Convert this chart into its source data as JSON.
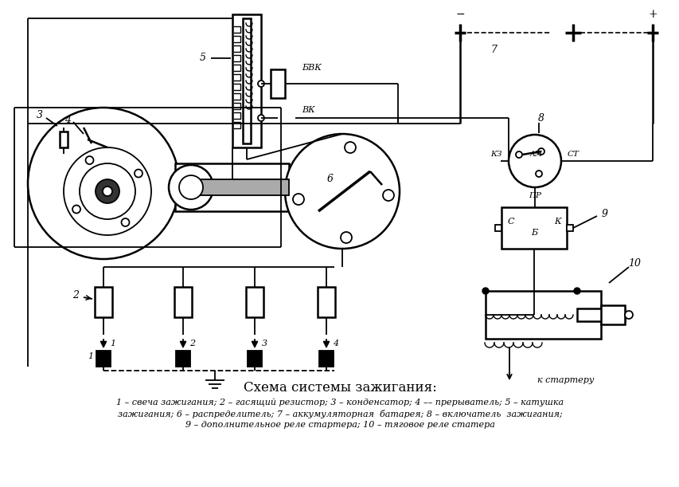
{
  "title": "Схема системы зажигания:",
  "caption_line1": "1 – свеча зажигания; 2 – гасящий резистор; 3 – конденсатор; 4 –– прерыватель; 5 – катушка",
  "caption_line2": "зажигания; 6 – распределитель; 7 – аккумуляторная  батарея; 8 – включатель  зажигания;",
  "caption_line3": "9 – дополнительное реле стартера; 10 – тяговое реле статера",
  "bg_color": "#ffffff",
  "line_color": "#000000"
}
